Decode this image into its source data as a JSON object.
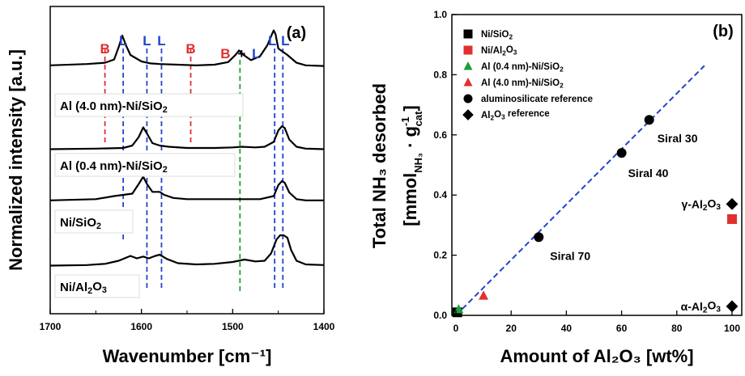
{
  "colors": {
    "lewis": "#2244cc",
    "bronsted": "#e03030",
    "mixed": "#1f9e3a",
    "black": "#000000",
    "fit_line": "#2244cc"
  },
  "chart_data": [
    {
      "type": "line",
      "panel": "(a)",
      "xlabel": "Wavenumber [cm⁻¹]",
      "ylabel": "Normalized intensity [a.u.]",
      "xlim": [
        1700,
        1400
      ],
      "x_reversed": true,
      "xticks": [
        "1700",
        "1600",
        "1500",
        "1400"
      ],
      "series": [
        {
          "name": "Al (4.0 nm)-Ni/SiO₂",
          "x": [
            1700,
            1660,
            1640,
            1630,
            1625,
            1621,
            1617,
            1612,
            1600,
            1590,
            1580,
            1560,
            1540,
            1520,
            1505,
            1497,
            1493,
            1488,
            1480,
            1470,
            1462,
            1457,
            1455,
            1453,
            1450,
            1445,
            1440,
            1430,
            1420,
            1400
          ],
          "y": [
            0.24,
            0.26,
            0.28,
            0.33,
            0.52,
            0.7,
            0.55,
            0.4,
            0.3,
            0.27,
            0.26,
            0.25,
            0.24,
            0.25,
            0.29,
            0.4,
            0.47,
            0.4,
            0.32,
            0.38,
            0.55,
            0.72,
            0.78,
            0.72,
            0.5,
            0.45,
            0.4,
            0.28,
            0.24,
            0.23
          ]
        },
        {
          "name": "Al (0.4 nm)-Ni/SiO₂",
          "x": [
            1700,
            1650,
            1620,
            1610,
            1603,
            1598,
            1594,
            1588,
            1580,
            1570,
            1550,
            1520,
            1500,
            1490,
            1475,
            1465,
            1455,
            1450,
            1446,
            1443,
            1438,
            1430,
            1420,
            1400
          ],
          "y": [
            0.02,
            0.03,
            0.04,
            0.08,
            0.22,
            0.38,
            0.28,
            0.12,
            0.08,
            0.06,
            0.04,
            0.04,
            0.05,
            0.06,
            0.05,
            0.06,
            0.14,
            0.33,
            0.4,
            0.37,
            0.18,
            0.06,
            0.03,
            0.02
          ]
        },
        {
          "name": "Ni/SiO₂",
          "x": [
            1700,
            1650,
            1630,
            1620,
            1610,
            1603,
            1598,
            1594,
            1588,
            1580,
            1575,
            1565,
            1550,
            1520,
            1490,
            1470,
            1455,
            1450,
            1446,
            1443,
            1438,
            1430,
            1420,
            1400
          ],
          "y": [
            0.03,
            0.05,
            0.1,
            0.12,
            0.14,
            0.3,
            0.42,
            0.3,
            0.17,
            0.17,
            0.12,
            0.07,
            0.05,
            0.05,
            0.05,
            0.05,
            0.1,
            0.28,
            0.35,
            0.32,
            0.16,
            0.05,
            0.03,
            0.03
          ]
        },
        {
          "name": "Ni/Al₂O₃",
          "x": [
            1700,
            1660,
            1640,
            1625,
            1612,
            1605,
            1598,
            1592,
            1585,
            1580,
            1572,
            1560,
            1540,
            1520,
            1500,
            1487,
            1475,
            1465,
            1458,
            1452,
            1448,
            1444,
            1440,
            1436,
            1430,
            1420,
            1400
          ],
          "y": [
            0.02,
            0.03,
            0.05,
            0.1,
            0.18,
            0.14,
            0.17,
            0.14,
            0.18,
            0.2,
            0.13,
            0.06,
            0.04,
            0.05,
            0.08,
            0.12,
            0.09,
            0.1,
            0.22,
            0.45,
            0.52,
            0.52,
            0.48,
            0.28,
            0.1,
            0.04,
            0.03
          ]
        }
      ],
      "reference_lines": [
        {
          "x": 1640,
          "type": "B",
          "label": "B"
        },
        {
          "x": 1620,
          "type": "L",
          "label": "L"
        },
        {
          "x": 1594,
          "type": "L",
          "label": "L"
        },
        {
          "x": 1578,
          "type": "L",
          "label": "L"
        },
        {
          "x": 1546,
          "type": "B",
          "label": "B"
        },
        {
          "x": 1492,
          "type": "B+L",
          "label_b": "B",
          "label_plus": "+",
          "label_l": "L"
        },
        {
          "x": 1454,
          "type": "L",
          "label": "L"
        },
        {
          "x": 1445,
          "type": "L",
          "label": "L"
        }
      ]
    },
    {
      "type": "scatter",
      "panel": "(b)",
      "xlabel": "Amount of Al₂O₃ [wt%]",
      "ylabel_line1": "Total NH₃ desorbed",
      "ylabel_line2": "[mmol",
      "ylabel_sub1": "NH₃",
      "ylabel_mid": " · g",
      "ylabel_sup": "-1",
      "ylabel_sub2": "cat",
      "ylabel_end": "]",
      "xlim": [
        0,
        100
      ],
      "ylim": [
        0,
        1.0
      ],
      "xticks": [
        "0",
        "20",
        "40",
        "60",
        "80",
        "100"
      ],
      "yticks": [
        "0.0",
        "0.2",
        "0.4",
        "0.6",
        "0.8",
        "1.0"
      ],
      "series": [
        {
          "name": "Ni/SiO₂",
          "marker": "square",
          "color": "#000000",
          "points": [
            {
              "x": 0.5,
              "y": 0.01
            }
          ]
        },
        {
          "name": "Ni/Al₂O₃",
          "marker": "square",
          "color": "#e03030",
          "points": [
            {
              "x": 100,
              "y": 0.32
            }
          ]
        },
        {
          "name": "Al (0.4 nm)-Ni/SiO₂",
          "marker": "triangle",
          "color": "#1f9e3a",
          "points": [
            {
              "x": 1,
              "y": 0.02
            }
          ]
        },
        {
          "name": "Al (4.0 nm)-Ni/SiO₂",
          "marker": "triangle",
          "color": "#e03030",
          "points": [
            {
              "x": 10,
              "y": 0.065
            }
          ]
        },
        {
          "name": "aluminosilicate reference",
          "marker": "circle",
          "color": "#000000",
          "points": [
            {
              "x": 30,
              "y": 0.26,
              "label": "Siral 70"
            },
            {
              "x": 60,
              "y": 0.54,
              "label": "Siral 40"
            },
            {
              "x": 70,
              "y": 0.65,
              "label": "Siral 30"
            }
          ]
        },
        {
          "name": "Al₂O₃ reference",
          "marker": "diamond",
          "color": "#000000",
          "points": [
            {
              "x": 100,
              "y": 0.37,
              "label": "γ-Al₂O₃"
            },
            {
              "x": 100,
              "y": 0.03,
              "label": "α-Al₂O₃"
            }
          ]
        }
      ],
      "fit_line": {
        "x": [
          0,
          90
        ],
        "y": [
          0.0,
          0.83
        ],
        "style": "dashed"
      }
    }
  ]
}
